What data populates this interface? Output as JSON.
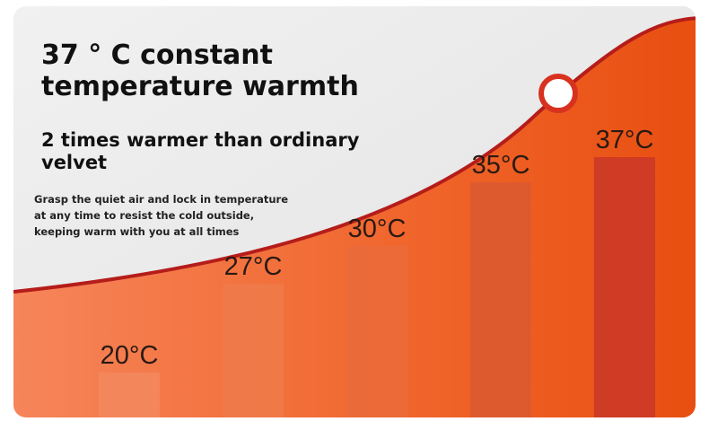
{
  "chart_data": {
    "type": "bar",
    "title": "37 ° C constant temperature warmth",
    "subtitle": "2 times warmer than ordinary velvet",
    "description": [
      "Grasp the quiet air and lock in temperature",
      "at any time to resist the cold outside,",
      "keeping warm with you at all times"
    ],
    "values": [
      20,
      27,
      30,
      35,
      37
    ],
    "value_labels": [
      "20°C",
      "27°C",
      "30°C",
      "35°C",
      "37°C"
    ],
    "colors": [
      "#f3875c",
      "#f07a4a",
      "#ea6a3a",
      "#db5a30",
      "#cc3a26"
    ]
  }
}
